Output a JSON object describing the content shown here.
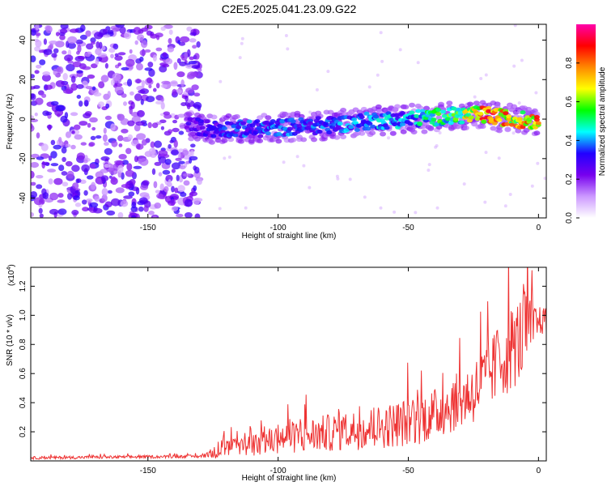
{
  "title": "C2E5.2025.041.23.09.G22",
  "chart_data": [
    {
      "type": "heatmap",
      "title": "C2E5.2025.041.23.09.G22",
      "xlabel": "Height of straight line (km)",
      "ylabel": "Frequency (Hz)",
      "xlim": [
        -195,
        3
      ],
      "ylim": [
        -50,
        48
      ],
      "xticks": [
        -150,
        -100,
        -50,
        0
      ],
      "yticks": [
        -40,
        -20,
        0,
        20,
        40
      ],
      "colorbar": {
        "label": "Normalized spectral amplitude",
        "range": [
          0,
          1
        ],
        "ticks": [
          "0.0",
          "0.2",
          "0.4",
          "0.6",
          "0.8"
        ],
        "colors": [
          "#ffffff",
          "#cc99ff",
          "#7700ee",
          "#2200ff",
          "#00ffff",
          "#00ff00",
          "#ffff00",
          "#ff8800",
          "#ff0000",
          "#ff00aa"
        ]
      },
      "noise_region_km": [
        -195,
        -130
      ],
      "ridge": [
        {
          "x": -135,
          "f": -3,
          "amp": 0.25
        },
        {
          "x": -125,
          "f": -5,
          "amp": 0.3
        },
        {
          "x": -110,
          "f": -5,
          "amp": 0.35
        },
        {
          "x": -95,
          "f": -4,
          "amp": 0.35
        },
        {
          "x": -80,
          "f": -3,
          "amp": 0.35
        },
        {
          "x": -65,
          "f": -1,
          "amp": 0.4
        },
        {
          "x": -50,
          "f": 0,
          "amp": 0.4
        },
        {
          "x": -40,
          "f": 1,
          "amp": 0.5
        },
        {
          "x": -30,
          "f": 2,
          "amp": 0.55
        },
        {
          "x": -20,
          "f": 2,
          "amp": 0.85
        },
        {
          "x": -10,
          "f": 0,
          "amp": 0.7
        },
        {
          "x": 0,
          "f": -1,
          "amp": 0.75
        }
      ]
    },
    {
      "type": "line",
      "xlabel": "Height of straight line (km)",
      "ylabel": "SNR (10 * v/v)",
      "ylabel_multiplier": "(x10",
      "ylabel_multiplier_exp": "4",
      "ylabel_multiplier_close": ")",
      "xlim": [
        -195,
        3
      ],
      "ylim": [
        0,
        1.33
      ],
      "xticks": [
        -150,
        -100,
        -50,
        0
      ],
      "yticks": [
        0.2,
        0.4,
        0.6,
        0.8,
        1.0,
        1.2
      ],
      "series": [
        {
          "color": "#ee3333",
          "x": [
            -195,
            -130,
            -125,
            -120,
            -110,
            -100,
            -90,
            -80,
            -70,
            -60,
            -50,
            -40,
            -30,
            -25,
            -20,
            -15,
            -10,
            -5,
            0,
            3
          ],
          "y": [
            0.02,
            0.03,
            0.05,
            0.08,
            0.1,
            0.14,
            0.16,
            0.18,
            0.2,
            0.22,
            0.25,
            0.3,
            0.4,
            0.45,
            0.55,
            0.65,
            0.75,
            0.85,
            0.95,
            0.95
          ],
          "noise_amplitude": [
            0.01,
            0.01,
            0.04,
            0.06,
            0.08,
            0.1,
            0.12,
            0.13,
            0.14,
            0.15,
            0.17,
            0.18,
            0.2,
            0.22,
            0.24,
            0.26,
            0.3,
            0.3,
            0.1,
            0.1
          ]
        }
      ]
    }
  ]
}
